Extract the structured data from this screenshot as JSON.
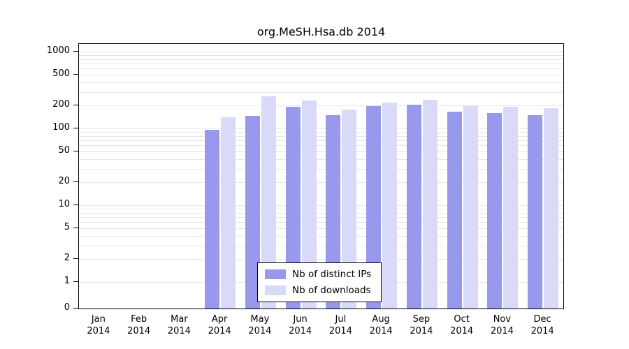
{
  "chart_data": {
    "type": "bar",
    "title": "org.MeSH.Hsa.db 2014",
    "year": "2014",
    "categories": [
      "Jan",
      "Feb",
      "Mar",
      "Apr",
      "May",
      "Jun",
      "Jul",
      "Aug",
      "Sep",
      "Oct",
      "Nov",
      "Dec"
    ],
    "series": [
      {
        "name": "Nb of distinct IPs",
        "color": "#9899ec",
        "values": [
          0,
          0,
          0,
          95,
          145,
          190,
          150,
          195,
          205,
          165,
          160,
          150
        ]
      },
      {
        "name": "Nb of downloads",
        "color": "#d9daf8",
        "values": [
          0,
          0,
          0,
          140,
          260,
          230,
          175,
          215,
          235,
          195,
          190,
          185
        ]
      }
    ],
    "yscale": "log",
    "yticks": [
      0,
      1,
      2,
      5,
      10,
      20,
      50,
      100,
      200,
      500,
      1000
    ],
    "ylim": [
      0,
      1000
    ],
    "grid": "on",
    "legend_position": "bottom-center",
    "grid_color": "#e7e7e7",
    "axis_color": "#000000"
  }
}
